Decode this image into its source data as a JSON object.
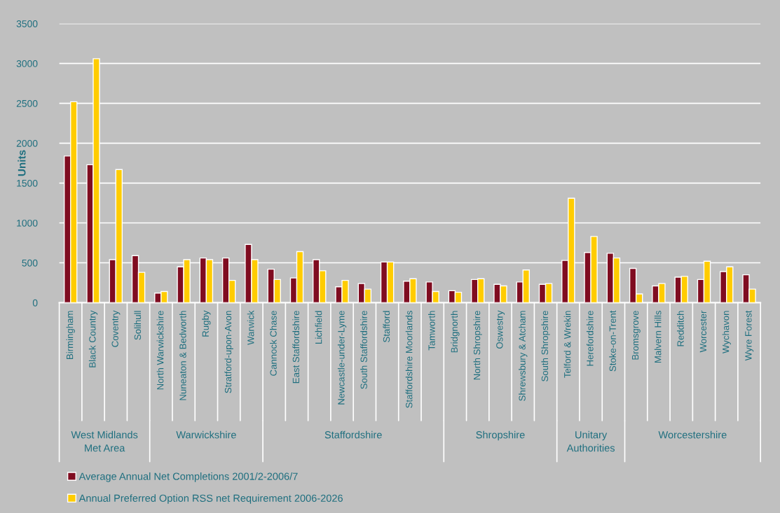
{
  "chart_data": {
    "type": "bar",
    "ylabel": "Units",
    "categories": [
      "Birmingham",
      "Black Country",
      "Coventry",
      "Solihull",
      "North Warwickshire",
      "Nuneaton & Bedworth",
      "Rugby",
      "Stratford-upon-Avon",
      "Warwick",
      "Cannock Chase",
      "East Staffordshire",
      "Lichfield",
      "Newcastle-under-Lyme",
      "South Staffordshire",
      "Stafford",
      "Staffordshire Moorlands",
      "Tamworth",
      "Bridgnorth",
      "North Shropshire",
      "Oswestry",
      "Shrewsbury & Atcham",
      "South Shropshire",
      "Telford & Wrekin",
      "Herefordshire",
      "Stoke-on-Trent",
      "Bromsgrove",
      "Malvern Hills",
      "Redditch",
      "Worcester",
      "Wychavon",
      "Wyre Forest"
    ],
    "series": [
      {
        "name": "Average Annual Net Completions 2001/2-2006/7",
        "color": "#7f0c20",
        "values": [
          1840,
          1730,
          540,
          590,
          120,
          450,
          560,
          560,
          730,
          420,
          310,
          540,
          200,
          240,
          510,
          270,
          260,
          150,
          290,
          230,
          260,
          230,
          530,
          630,
          620,
          430,
          210,
          320,
          290,
          390,
          350
        ]
      },
      {
        "name": "Annual Preferred Option RSS net Requirement 2006-2026",
        "color": "#ffcc00",
        "values": [
          2520,
          3060,
          1670,
          380,
          140,
          540,
          540,
          280,
          540,
          290,
          640,
          400,
          280,
          170,
          510,
          300,
          140,
          130,
          300,
          210,
          410,
          240,
          1310,
          830,
          560,
          110,
          240,
          330,
          520,
          450,
          170
        ]
      }
    ],
    "annotations": [
      "West Midlands\nMet Area",
      "Warwickshire",
      "Staffordshire",
      "Shropshire",
      "Unitary\nAuthorities",
      "Worcestershire"
    ],
    "ylim": [
      0,
      3500
    ],
    "yticks": [
      0,
      500,
      1000,
      1500,
      2000,
      2500,
      3000,
      3500
    ],
    "grid": "y",
    "legend": "bottom"
  }
}
